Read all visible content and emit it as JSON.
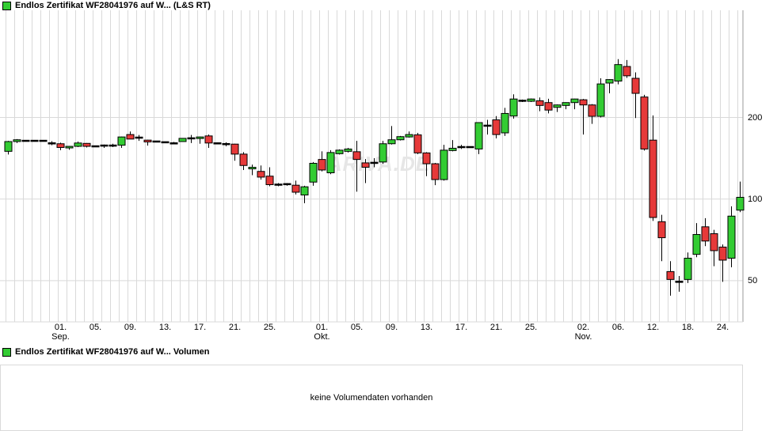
{
  "header": {
    "legend_label": "Endlos Zertifikat WF28041976 auf W... (L&S RT)"
  },
  "volume_panel": {
    "legend_label": "Endlos Zertifikat WF28041976 auf W... Volumen",
    "message": "keine Volumendaten vorhanden"
  },
  "watermark": "ARIVA.DE",
  "colors": {
    "up": "#33cc33",
    "down": "#e63939",
    "doji": "#000000",
    "wick": "#000000",
    "grid": "#d9d9d9",
    "axis_border": "#9a9a9a",
    "legend_icon": "#33cc33",
    "watermark": "#e6e6e6",
    "text": "#000000"
  },
  "chart_data": {
    "type": "candlestick",
    "title": "Endlos Zertifikat WF28041976 auf W... (L&S RT)",
    "series_name": "Endlos Zertifikat WF28041976 auf W...",
    "y_scale": "log",
    "y_axis_ticks": [
      200,
      100,
      50
    ],
    "y_visible_range": [
      44,
      330
    ],
    "legend_position": "top-left",
    "grid": true,
    "x_axis_ticks": [
      {
        "index": 6,
        "label": "01.",
        "month": "Sep."
      },
      {
        "index": 10,
        "label": "05."
      },
      {
        "index": 14,
        "label": "09."
      },
      {
        "index": 18,
        "label": "13."
      },
      {
        "index": 22,
        "label": "17."
      },
      {
        "index": 26,
        "label": "21."
      },
      {
        "index": 30,
        "label": "25."
      },
      {
        "index": 36,
        "label": "01.",
        "month": "Okt."
      },
      {
        "index": 40,
        "label": "05."
      },
      {
        "index": 44,
        "label": "09."
      },
      {
        "index": 48,
        "label": "13."
      },
      {
        "index": 52,
        "label": "17."
      },
      {
        "index": 56,
        "label": "21."
      },
      {
        "index": 60,
        "label": "25."
      },
      {
        "index": 66,
        "label": "02.",
        "month": "Nov."
      },
      {
        "index": 70,
        "label": "06."
      },
      {
        "index": 74,
        "label": "12."
      },
      {
        "index": 78,
        "label": "18."
      },
      {
        "index": 82,
        "label": "24."
      }
    ],
    "candles_ohlc": [
      [
        150,
        164,
        146,
        163
      ],
      [
        163,
        166.5,
        161,
        165.5
      ],
      [
        164,
        165,
        163,
        164
      ],
      [
        164,
        164.5,
        163.5,
        164
      ],
      [
        164,
        164.5,
        163.5,
        164
      ],
      [
        160.5,
        163.5,
        158,
        160.5
      ],
      [
        160,
        161.5,
        151.5,
        155
      ],
      [
        155,
        157,
        152,
        156.5
      ],
      [
        156.5,
        163,
        155.5,
        161
      ],
      [
        160.5,
        161,
        155,
        156.5
      ],
      [
        156.5,
        157.5,
        155.5,
        156.5
      ],
      [
        157.5,
        159,
        154.5,
        157.5
      ],
      [
        157.5,
        160,
        155.5,
        157.5
      ],
      [
        158,
        170,
        154.5,
        169.5
      ],
      [
        173,
        177.5,
        166.5,
        166.5
      ],
      [
        168.5,
        172.5,
        164,
        168.5
      ],
      [
        165,
        165.5,
        157.5,
        162.5
      ],
      [
        163,
        164,
        162,
        163
      ],
      [
        162,
        163,
        161,
        162
      ],
      [
        160.5,
        162.5,
        159.5,
        160.5
      ],
      [
        163,
        168,
        162.5,
        167.5
      ],
      [
        167.5,
        172.5,
        161,
        167.5
      ],
      [
        167.5,
        170,
        160,
        169.5
      ],
      [
        171,
        173,
        154.5,
        161
      ],
      [
        160.5,
        161.5,
        159.5,
        160.5
      ],
      [
        159.5,
        162,
        156.5,
        159.5
      ],
      [
        159.5,
        160,
        138.5,
        146.5
      ],
      [
        146.5,
        149,
        128,
        133
      ],
      [
        129.5,
        134,
        122.5,
        131
      ],
      [
        126.5,
        133,
        118,
        120.5
      ],
      [
        121.5,
        131,
        111.5,
        113
      ],
      [
        113,
        114.5,
        111.5,
        113
      ],
      [
        113.5,
        114.5,
        112,
        113.5
      ],
      [
        112.5,
        117,
        104,
        106
      ],
      [
        103.5,
        112,
        96.5,
        111
      ],
      [
        115.5,
        137,
        112,
        135.5
      ],
      [
        140,
        150,
        126.5,
        128
      ],
      [
        125,
        151.5,
        123.5,
        148.5
      ],
      [
        147,
        152.5,
        146,
        151.5
      ],
      [
        150,
        154.5,
        148.5,
        153
      ],
      [
        149.5,
        164,
        106.5,
        140
      ],
      [
        136,
        140.5,
        114.5,
        131
      ],
      [
        136,
        141.5,
        131,
        136
      ],
      [
        137,
        164,
        135,
        160
      ],
      [
        160,
        186,
        159,
        165.5
      ],
      [
        165.5,
        171,
        164.5,
        170
      ],
      [
        169.5,
        177.5,
        168.5,
        173
      ],
      [
        172.5,
        175.5,
        146.5,
        148
      ],
      [
        148,
        149,
        121.5,
        135
      ],
      [
        135,
        136,
        112.5,
        118
      ],
      [
        118,
        158.5,
        117,
        151.5
      ],
      [
        151,
        165,
        150,
        154
      ],
      [
        155.5,
        158.5,
        153,
        155.5
      ],
      [
        155.5,
        156.5,
        154.5,
        155.5
      ],
      [
        153,
        192,
        146.5,
        191.5
      ],
      [
        186.5,
        196,
        173,
        186.5
      ],
      [
        196,
        202.5,
        167.5,
        173
      ],
      [
        175.5,
        217,
        171,
        207
      ],
      [
        202.5,
        243.5,
        198,
        234
      ],
      [
        230.5,
        233,
        228,
        230.5
      ],
      [
        229.5,
        235,
        228,
        234
      ],
      [
        230.5,
        237,
        211,
        221.5
      ],
      [
        227,
        234.5,
        207,
        213
      ],
      [
        218,
        223.5,
        209.5,
        222.5
      ],
      [
        221.5,
        227.5,
        214.5,
        227
      ],
      [
        227,
        234.5,
        214.5,
        234
      ],
      [
        232.5,
        234,
        173,
        222.5
      ],
      [
        222.5,
        224,
        189.5,
        202
      ],
      [
        202,
        279,
        200,
        266
      ],
      [
        268,
        277,
        245.5,
        276
      ],
      [
        272.5,
        328.5,
        265,
        313.5
      ],
      [
        308.5,
        326,
        280,
        285
      ],
      [
        279,
        293.5,
        199,
        245.5
      ],
      [
        238,
        242.5,
        151,
        153
      ],
      [
        165,
        203.5,
        83,
        85.5
      ],
      [
        82.5,
        87.5,
        59,
        72
      ],
      [
        54,
        59,
        44,
        50.5
      ],
      [
        49.5,
        52,
        45.5,
        49.5
      ],
      [
        50.5,
        63.5,
        49,
        60.5
      ],
      [
        62.5,
        81.5,
        61,
        74
      ],
      [
        79,
        85,
        67,
        70
      ],
      [
        74.5,
        77,
        56.5,
        64.5
      ],
      [
        66.5,
        68,
        49.5,
        59.5
      ],
      [
        60.5,
        94,
        56,
        86.5
      ],
      [
        91,
        116,
        89.5,
        101.5
      ]
    ]
  }
}
